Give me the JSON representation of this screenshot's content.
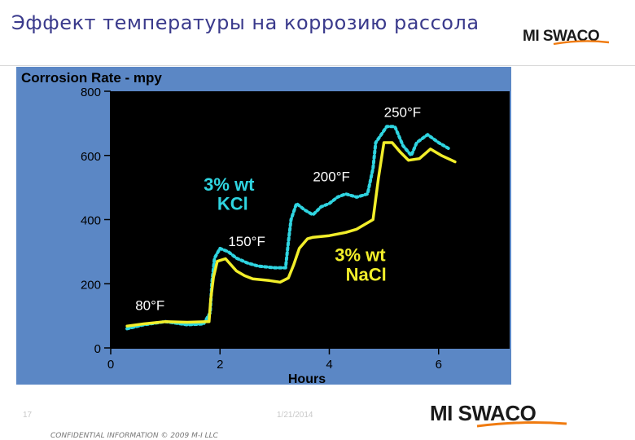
{
  "slide": {
    "title": "Эффект температуры на коррозию рассола",
    "page_number": "17",
    "date": "1/21/2014",
    "confidential": "CONFIDENTIAL INFORMATION © 2009 M-I LLC"
  },
  "logo": {
    "text": "MI SWACO"
  },
  "colors": {
    "panel_bg": "#5b87c5",
    "plot_bg": "#000000",
    "kcl_series": "#2fd4e0",
    "nacl_series": "#f2ee2a",
    "title_text": "#3a3a8c",
    "logo_orange": "#f07b10"
  },
  "chart_data": {
    "type": "line",
    "title": "Corrosion Rate - mpy",
    "xlabel": "Hours",
    "ylabel": "",
    "xlim": [
      0,
      7.3
    ],
    "ylim": [
      0,
      800
    ],
    "xticks": [
      0,
      2,
      4,
      6
    ],
    "yticks": [
      0,
      200,
      400,
      600,
      800
    ],
    "grid": false,
    "series": [
      {
        "name": "3% wt KCl",
        "style": "dotted",
        "x": [
          0.3,
          0.6,
          1.0,
          1.4,
          1.7,
          1.82,
          1.85,
          1.9,
          2.0,
          2.15,
          2.3,
          2.5,
          2.7,
          3.0,
          3.2,
          3.25,
          3.3,
          3.4,
          3.55,
          3.7,
          3.85,
          4.0,
          4.15,
          4.3,
          4.5,
          4.7,
          4.8,
          4.85,
          4.95,
          5.05,
          5.2,
          5.35,
          5.5,
          5.6,
          5.8,
          6.0,
          6.2
        ],
        "y": [
          60,
          72,
          82,
          72,
          75,
          110,
          200,
          280,
          310,
          300,
          280,
          265,
          255,
          250,
          250,
          330,
          400,
          450,
          430,
          415,
          440,
          450,
          470,
          480,
          470,
          480,
          560,
          640,
          665,
          690,
          690,
          630,
          600,
          640,
          665,
          640,
          620
        ]
      },
      {
        "name": "3% wt NaCl",
        "style": "solid",
        "x": [
          0.3,
          0.6,
          1.0,
          1.4,
          1.8,
          1.83,
          1.88,
          1.95,
          2.1,
          2.3,
          2.45,
          2.6,
          2.9,
          3.1,
          3.25,
          3.35,
          3.45,
          3.6,
          3.7,
          4.0,
          4.3,
          4.5,
          4.8,
          4.9,
          5.0,
          5.15,
          5.3,
          5.45,
          5.65,
          5.85,
          6.05,
          6.3
        ],
        "y": [
          68,
          75,
          82,
          80,
          82,
          150,
          220,
          270,
          278,
          240,
          225,
          215,
          210,
          205,
          218,
          260,
          310,
          340,
          345,
          350,
          360,
          370,
          400,
          530,
          640,
          640,
          610,
          585,
          590,
          620,
          600,
          580
        ]
      }
    ],
    "annotations": [
      {
        "text": "80°F",
        "x": 0.45,
        "y": 118,
        "color": "#ffffff"
      },
      {
        "text": "150°F",
        "x": 2.15,
        "y": 318,
        "color": "#ffffff"
      },
      {
        "text": "200°F",
        "x": 3.7,
        "y": 520,
        "color": "#ffffff"
      },
      {
        "text": "250°F",
        "x": 5.0,
        "y": 720,
        "color": "#ffffff"
      },
      {
        "text": "3% wt",
        "x": 1.7,
        "y": 490,
        "color": "#2fd4e0",
        "bold": true
      },
      {
        "text": "KCl",
        "x": 1.95,
        "y": 430,
        "color": "#2fd4e0",
        "bold": true
      },
      {
        "text": "3% wt",
        "x": 4.1,
        "y": 270,
        "color": "#f2ee2a",
        "bold": true
      },
      {
        "text": "NaCl",
        "x": 4.3,
        "y": 210,
        "color": "#f2ee2a",
        "bold": true
      }
    ]
  }
}
